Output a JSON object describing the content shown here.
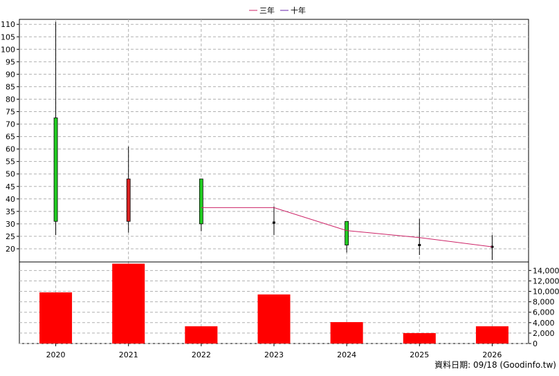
{
  "legend": {
    "three_year": "三年",
    "ten_year": "十年"
  },
  "footer": {
    "source": "資料日期: 09/18  (Goodinfo.tw)"
  },
  "colors": {
    "up_candle": "#22cc22",
    "down_candle": "#dd2222",
    "three_year_line": "#cc2266",
    "ten_year_line": "#6622aa",
    "volume_bar": "#ff0000",
    "grid": "#b0b0b0"
  },
  "chart_data": {
    "type": "candlestick+volume",
    "categories": [
      "2020",
      "2021",
      "2022",
      "2023",
      "2024",
      "2025",
      "2026"
    ],
    "price": {
      "ylim": [
        15,
        112
      ],
      "ticks": [
        20,
        25,
        30,
        35,
        40,
        45,
        50,
        55,
        60,
        65,
        70,
        75,
        80,
        85,
        90,
        95,
        100,
        105,
        110
      ],
      "candles": [
        {
          "year": "2020",
          "open": 31,
          "high": 111,
          "low": 25.5,
          "close": 72.5
        },
        {
          "year": "2021",
          "open": 48,
          "high": 61,
          "low": 26.5,
          "close": 31
        },
        {
          "year": "2022",
          "open": 30,
          "high": 48,
          "low": 27,
          "close": 48
        },
        {
          "year": "2023",
          "open": 30.5,
          "high": 37,
          "low": 25.5,
          "close": 30.5
        },
        {
          "year": "2024",
          "open": 21.5,
          "high": 31,
          "low": 18.5,
          "close": 31
        },
        {
          "year": "2025",
          "open": 21.5,
          "high": 32,
          "low": 17.5,
          "close": 21.5
        },
        {
          "year": "2026",
          "open": 20.8,
          "high": 25.5,
          "low": 15.5,
          "close": 20.8
        }
      ],
      "series": [
        {
          "name": "三年",
          "points": [
            {
              "x": "2022",
              "y": 36.5
            },
            {
              "x": "2023",
              "y": 36.5
            },
            {
              "x": "2024",
              "y": 27.3
            },
            {
              "x": "2025",
              "y": 24.5
            },
            {
              "x": "2026",
              "y": 20.8
            }
          ]
        }
      ]
    },
    "volume": {
      "ylim": [
        0,
        15500
      ],
      "ticks": [
        0,
        2000,
        4000,
        6000,
        8000,
        10000,
        12000,
        14000
      ],
      "tick_labels": [
        "0",
        "2,000",
        "4,000",
        "6,000",
        "8,000",
        "10,000",
        "12,000",
        "14,000"
      ],
      "values": [
        9800,
        15300,
        3300,
        9400,
        4100,
        2000,
        3300
      ]
    }
  }
}
